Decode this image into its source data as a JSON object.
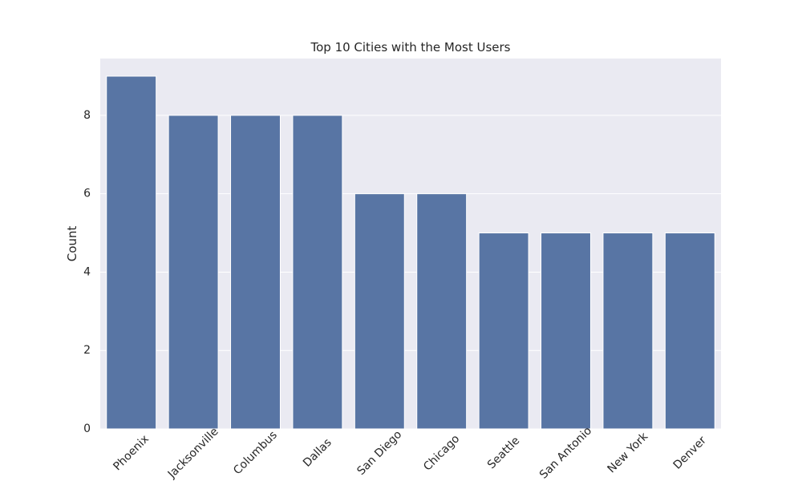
{
  "chart_data": {
    "type": "bar",
    "title": "Top 10 Cities with the Most Users",
    "ylabel": "Count",
    "categories": [
      "Phoenix",
      "Jacksonville",
      "Columbus",
      "Dallas",
      "San Diego",
      "Chicago",
      "Seattle",
      "San Antonio",
      "New York",
      "Denver"
    ],
    "values": [
      9,
      8,
      8,
      8,
      6,
      6,
      5,
      5,
      5,
      5
    ],
    "color": "#5875a4",
    "ylim": [
      0,
      9.45
    ],
    "yticks": [
      0,
      2,
      4,
      6,
      8
    ],
    "grid": true
  }
}
